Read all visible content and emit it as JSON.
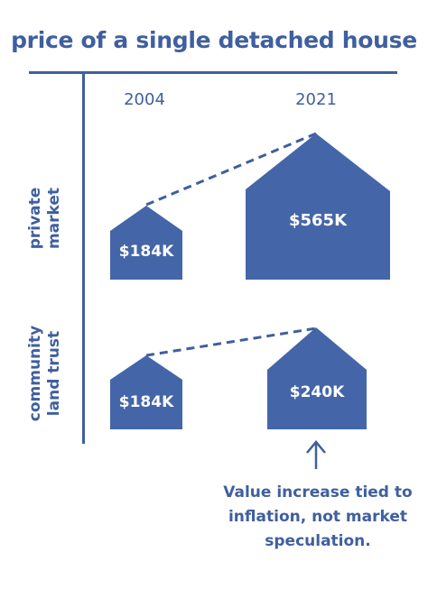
{
  "title": "price of a single detached house",
  "years": [
    "2004",
    "2021"
  ],
  "rows": [
    {
      "label_line1": "private",
      "label_line2": "market",
      "price_2004": "$184K",
      "price_2021": "$565K"
    },
    {
      "label_line1": "community",
      "label_line2": "land trust",
      "price_2004": "$184K",
      "price_2021": "$240K"
    }
  ],
  "caption": [
    "Value increase tied to",
    "inflation, not market",
    "speculation."
  ],
  "colors": {
    "primary": "#3f5f9e",
    "house_fill": "#4466a8",
    "background": "#ffffff"
  },
  "icons": {
    "arrow": "arrow-up-icon",
    "house": "house-icon"
  }
}
